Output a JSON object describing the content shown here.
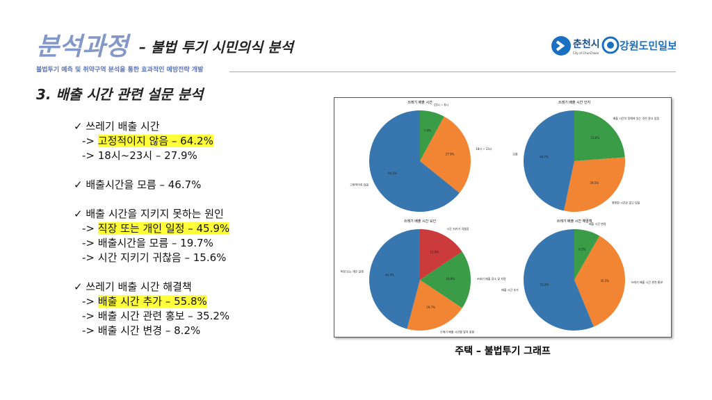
{
  "header": {
    "title": "분석과정",
    "subtitle": "– 불법 투기 시민의식 분석",
    "tagline": "불법투기 예측 및 취약구역 분석을 통한 효과적인 예방전략 개발"
  },
  "logos": {
    "city": "춘천시",
    "city_en": "City of ChunCheon",
    "paper": "강원도민일보"
  },
  "section": "3. 배출 시간 관련 설문 분석",
  "bullets": [
    {
      "marker": "✓",
      "heading": "쓰레기 배출 시간",
      "items": [
        {
          "marker": "->",
          "text": "고정적이지 않음 – 64.2%",
          "highlight": true
        },
        {
          "marker": "->",
          "text": "18시~23시 – 27.9%",
          "highlight": false
        }
      ]
    },
    {
      "marker": "✓",
      "heading": "배출시간을 모름 – 46.7%",
      "items": []
    },
    {
      "marker": "✓",
      "heading": "배출 시간을 지키지 못하는 원인",
      "items": [
        {
          "marker": "->",
          "text": "직장 또는 개인 일정 – 45.9%",
          "highlight": true
        },
        {
          "marker": "->",
          "text": "배출시간을 모름 – 19.7%",
          "highlight": false
        },
        {
          "marker": "->",
          "text": "시간 지키기 귀찮음 – 15.6%",
          "highlight": false
        }
      ]
    },
    {
      "marker": "✓",
      "heading": "쓰레기 배출 시간 해결책",
      "items": [
        {
          "marker": "->",
          "text": "배출 시간 추가 – 55.8%",
          "highlight": true
        },
        {
          "marker": "->",
          "text": "배출 시간 관련 홍보 – 35.2%",
          "highlight": false
        },
        {
          "marker": "->",
          "text": "배출 시간 변경 – 8.2%",
          "highlight": false
        }
      ]
    }
  ],
  "caption": "주택 – 불법투기 그래프",
  "chart_data": [
    {
      "type": "pie",
      "title": "쓰레기 배출 시간",
      "categories": [
        "23시 ~ 6시",
        "18시 ~ 23시",
        "고정적이지 않음"
      ],
      "values": [
        7.9,
        27.9,
        64.2
      ],
      "value_labels": [
        "7.9%",
        "27.9%",
        "64.2%"
      ],
      "colors": [
        "#3b9c48",
        "#f28533",
        "#3776ae"
      ]
    },
    {
      "type": "pie",
      "title": "쓰레기 배출 시간 인지",
      "categories": [
        "배출 시간이 정해져 있는 것은 알고 있음",
        "정확한 시간은 알고 있음",
        "모름"
      ],
      "values": [
        23.8,
        29.5,
        46.7
      ],
      "value_labels": [
        "23.8%",
        "29.5%",
        "46.7%"
      ],
      "colors": [
        "#3b9c48",
        "#f28533",
        "#3776ae"
      ]
    },
    {
      "type": "pie",
      "title": "쓰레기 배출 시간 요인",
      "categories": [
        "시간 지키기 귀찮음",
        "쓰레기 배출 장소 및 차량",
        "쓰레기 배출 시간을 알지 못함",
        "직장 또는 개인 일정"
      ],
      "values": [
        15.6,
        18.8,
        19.7,
        45.9
      ],
      "value_labels": [
        "15.6%",
        "18.8%",
        "19.7%",
        "45.9%"
      ],
      "colors": [
        "#cc3b3b",
        "#3b9c48",
        "#f28533",
        "#3776ae"
      ]
    },
    {
      "type": "pie",
      "title": "쓰레기 배출 시간 해결책",
      "categories": [
        "배출 시간 변경",
        "쓰레기 배출 시간 관련 홍보",
        "배출 시간 추가"
      ],
      "values": [
        8.2,
        35.2,
        55.8
      ],
      "value_labels": [
        "8.2%",
        "35.2%",
        "55.8%"
      ],
      "colors": [
        "#3b9c48",
        "#f28533",
        "#3776ae"
      ]
    }
  ]
}
